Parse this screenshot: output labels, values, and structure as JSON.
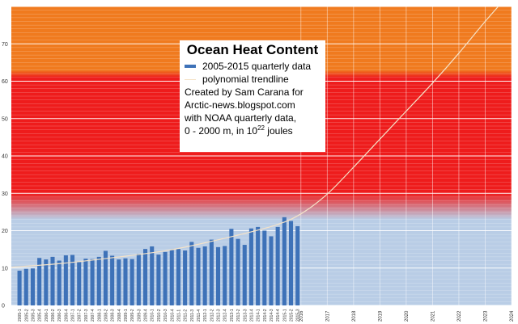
{
  "chart_data": {
    "type": "bar",
    "title": "Ocean Heat Content",
    "legend": {
      "placement": "top-center",
      "entries": [
        {
          "label": "2005-2015 quarterly data",
          "kind": "bar",
          "color": "#3e72b8"
        },
        {
          "label": "polynomial trendline",
          "kind": "line",
          "color": "#f5e3c8"
        }
      ]
    },
    "credits": [
      "Created by Sam Carana for",
      "Arctic-news.blogspot.com",
      "with NOAA quarterly data,"
    ],
    "units": {
      "prefix": "0 - 2000 m, in 10",
      "exponent": "22",
      "suffix": " joules"
    },
    "ylim": [
      0,
      80
    ],
    "yticks": [
      0,
      10,
      20,
      30,
      40,
      50,
      60,
      70
    ],
    "xlim": [
      2005.0,
      2024.0
    ],
    "year_ticks": [
      "2016",
      "2017",
      "2018",
      "2019",
      "2020",
      "2021",
      "2022",
      "2023",
      "2024"
    ],
    "grid": true,
    "background_bands": [
      {
        "from": 0,
        "to": 22,
        "color": "#b9cde6"
      },
      {
        "from": 22,
        "to": 30,
        "color": "gradient"
      },
      {
        "from": 30,
        "to": 62,
        "color": "#ee1c1c"
      },
      {
        "from": 62,
        "to": 80,
        "color": "#f07a1e"
      }
    ],
    "categories": [
      "2005-1",
      "2005-2",
      "2005-3",
      "2005-4",
      "2006-1",
      "2006-2",
      "2006-3",
      "2006-4",
      "2007-1",
      "2007-2",
      "2007-3",
      "2007-4",
      "2008-1",
      "2008-2",
      "2008-3",
      "2008-4",
      "2009-1",
      "2009-2",
      "2009-3",
      "2009-4",
      "2010-1",
      "2010-2",
      "2010-3",
      "2010-4",
      "2011-1",
      "2011-2",
      "2011-3",
      "2011-4",
      "2012-1",
      "2012-2",
      "2012-3",
      "2012-4",
      "2013-1",
      "2013-2",
      "2013-3",
      "2013-4",
      "2014-1",
      "2014-2",
      "2014-3",
      "2014-4",
      "2015-1",
      "2015-2",
      "2015-3"
    ],
    "series": [
      {
        "name": "2005-2015 quarterly data",
        "color": "#3e72b8",
        "values": [
          9.3,
          9.8,
          9.9,
          12.7,
          12.3,
          13.0,
          12.0,
          13.4,
          13.5,
          11.6,
          12.5,
          12.4,
          13.0,
          14.6,
          13.3,
          12.3,
          12.6,
          12.4,
          13.8,
          15.1,
          15.8,
          13.6,
          14.3,
          14.8,
          15.1,
          14.7,
          17.0,
          15.4,
          15.8,
          17.6,
          15.6,
          15.9,
          20.5,
          17.8,
          16.2,
          20.6,
          21.0,
          20.0,
          18.5,
          21.0,
          23.6,
          22.6,
          21.2
        ]
      }
    ],
    "trendline": {
      "name": "polynomial trendline",
      "type": "polynomial",
      "color": "#f5e3c8",
      "x": [
        2005.0,
        2007.0,
        2009.0,
        2011.0,
        2013.0,
        2015.0,
        2016.0,
        2017.0,
        2018.0,
        2019.0,
        2020.0,
        2021.0,
        2022.0,
        2023.0,
        2024.0
      ],
      "y": [
        10.2,
        11.3,
        12.9,
        14.8,
        17.8,
        21.4,
        24.5,
        29.8,
        37.0,
        44.5,
        52.0,
        59.5,
        67.5,
        76.0,
        84.0
      ]
    }
  }
}
